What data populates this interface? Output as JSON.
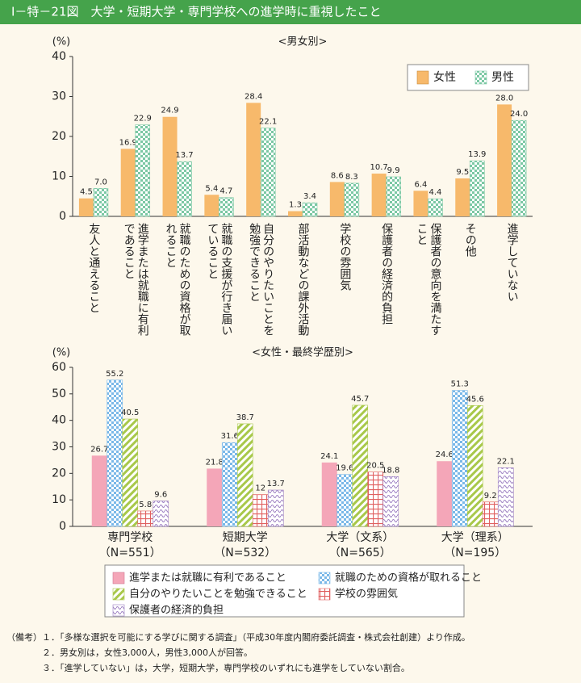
{
  "header": {
    "title": "Ⅰ－特－21図　大学・短期大学・専門学校への進学時に重視したこと"
  },
  "chart_data": [
    {
      "type": "bar",
      "subtitle": "<男女別>",
      "y_label": "(%)",
      "categories": [
        "友人と通えること",
        "進学または就職に有利であること",
        "就職のための資格が取れること",
        "就職の支援が行き届いていること",
        "自分のやりたいことを勉強できること",
        "部活動などの課外活動",
        "学校の雰囲気",
        "保護者の経済的負担",
        "保護者の意向を満たすこと",
        "その他",
        "進学していない"
      ],
      "series": [
        {
          "name": "女性",
          "color": "#f7b96b",
          "pattern": null,
          "values": [
            4.5,
            16.9,
            24.9,
            5.4,
            28.4,
            1.3,
            8.6,
            10.7,
            6.4,
            9.5,
            28.0
          ],
          "value_labels": [
            "4.5",
            "16.9",
            "24.9",
            "5.4",
            "28.4",
            "1.3",
            "8.6",
            "10.7",
            "6.4",
            "9.5",
            "28.0"
          ]
        },
        {
          "name": "男性",
          "color": "#7cc8a4",
          "pattern": "checker",
          "values": [
            7.0,
            22.9,
            13.7,
            4.7,
            22.1,
            3.4,
            8.3,
            9.9,
            4.4,
            13.9,
            24.0
          ],
          "value_labels": [
            "7.0",
            "22.9",
            "13.7",
            "4.7",
            "22.1",
            "3.4",
            "8.3",
            "9.9",
            "4.4",
            "13.9",
            "24.0"
          ]
        }
      ],
      "ylim": [
        0,
        40
      ],
      "yticks": [
        0,
        10,
        20,
        30,
        40
      ],
      "grid": false,
      "legend": "top-right"
    },
    {
      "type": "bar",
      "subtitle": "<女性・最終学歴別>",
      "y_label": "(%)",
      "categories": [
        "専門学校",
        "短期大学",
        "大学（文系）",
        "大学（理系）"
      ],
      "category_notes": [
        "（N=551）",
        "（N=532）",
        "（N=565）",
        "（N=195）"
      ],
      "series": [
        {
          "name": "進学または就職に有利であること",
          "color": "#f4a6b8",
          "pattern": null,
          "values": [
            26.7,
            21.8,
            24.1,
            24.6
          ]
        },
        {
          "name": "就職のための資格が取れること",
          "color": "#7ab8e8",
          "pattern": "checker",
          "values": [
            55.2,
            31.6,
            19.6,
            51.3
          ]
        },
        {
          "name": "自分のやりたいことを勉強できること",
          "color": "#a8c84a",
          "pattern": "diagonal",
          "values": [
            40.5,
            38.7,
            45.7,
            45.6
          ]
        },
        {
          "name": "学校の雰囲気",
          "color": "#e06060",
          "pattern": "grid",
          "values": [
            5.8,
            12.0,
            20.5,
            9.2
          ]
        },
        {
          "name": "保護者の経済的負担",
          "color": "#9a7cc0",
          "pattern": "wave",
          "values": [
            9.6,
            13.7,
            18.8,
            22.1
          ]
        }
      ],
      "ylim": [
        0,
        60
      ],
      "yticks": [
        0,
        10,
        20,
        30,
        40,
        50,
        60
      ],
      "grid": false,
      "legend": "bottom"
    }
  ],
  "notes": {
    "label": "（備考）",
    "items": [
      "１．「多様な選択を可能にする学びに関する調査」（平成30年度内閣府委託調査・株式会社創建）より作成。",
      "２．男女別は，女性3,000人，男性3,000人が回答。",
      "３．「進学していない」は，大学，短期大学，専門学校のいずれにも進学をしていない割合。"
    ]
  }
}
